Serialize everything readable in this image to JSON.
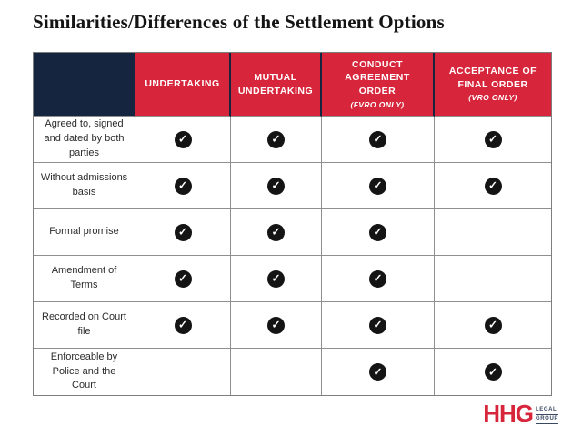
{
  "title": "Similarities/Differences of the Settlement Options",
  "table": {
    "columns": [
      {
        "label": "UNDERTAKING",
        "sublabel": ""
      },
      {
        "label": "MUTUAL UNDERTAKING",
        "sublabel": ""
      },
      {
        "label": "CONDUCT AGREEMENT ORDER",
        "sublabel": "(FVRO ONLY)"
      },
      {
        "label": "ACCEPTANCE OF FINAL ORDER",
        "sublabel": "(VRO ONLY)"
      }
    ],
    "rows": [
      {
        "label": "Agreed to, signed and dated by both parties",
        "checks": [
          1,
          1,
          1,
          1
        ]
      },
      {
        "label": "Without admissions basis",
        "checks": [
          1,
          1,
          1,
          1
        ]
      },
      {
        "label": "Formal promise",
        "checks": [
          1,
          1,
          1,
          0
        ]
      },
      {
        "label": "Amendment of Terms",
        "checks": [
          1,
          1,
          1,
          0
        ]
      },
      {
        "label": "Recorded on Court file",
        "checks": [
          1,
          1,
          1,
          1
        ]
      },
      {
        "label": "Enforceable by Police and the Court",
        "checks": [
          0,
          0,
          1,
          1
        ]
      }
    ]
  },
  "check_icon": "✓",
  "logo": {
    "main": "HHG",
    "sub_top": "LEGAL",
    "sub_bottom": "GROUP"
  },
  "colors": {
    "navy": "#16253f",
    "red": "#d7263b",
    "border": "#8f8f8f",
    "check": "#141414",
    "titlec": "#141414"
  }
}
